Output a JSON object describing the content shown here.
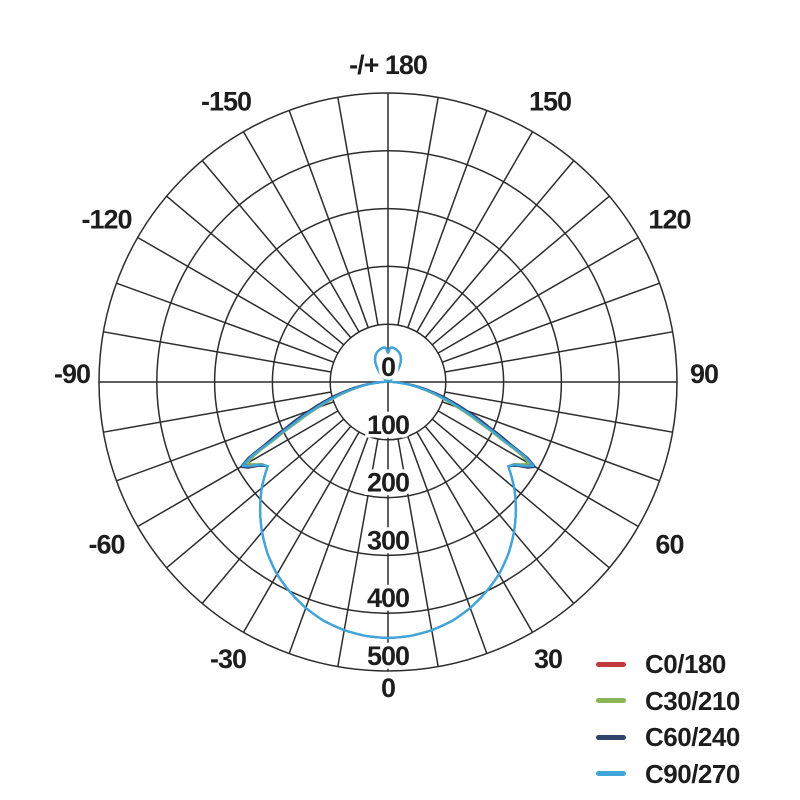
{
  "chart_data": {
    "type": "line",
    "coordinate_system": "polar",
    "title": "",
    "zero_angle_position": "bottom",
    "angle_unit": "deg",
    "grid": {
      "angle_step_deg": 10,
      "radial_step": 100,
      "color": "#2c2c2c"
    },
    "angle_ticks": [
      {
        "angle": 180,
        "label": "-/+ 180"
      },
      {
        "angle": 150,
        "label": "150"
      },
      {
        "angle": 120,
        "label": "120"
      },
      {
        "angle": 90,
        "label": "90"
      },
      {
        "angle": 60,
        "label": "60"
      },
      {
        "angle": 30,
        "label": "30"
      },
      {
        "angle": 0,
        "label": "0"
      },
      {
        "angle": -30,
        "label": "-30"
      },
      {
        "angle": -60,
        "label": "-60"
      },
      {
        "angle": -90,
        "label": "-90"
      },
      {
        "angle": -120,
        "label": "-120"
      },
      {
        "angle": -150,
        "label": "-150"
      }
    ],
    "radial_ticks": [
      "0",
      "100",
      "200",
      "300",
      "400",
      "500"
    ],
    "radial_max": 500,
    "symmetric_mirror": true,
    "series": [
      {
        "name": "C0/180",
        "color": "#c03a3c",
        "samples": [
          [
            0,
            443
          ],
          [
            5,
            441
          ],
          [
            10,
            436
          ],
          [
            15,
            428
          ],
          [
            20,
            416
          ],
          [
            25,
            401
          ],
          [
            30,
            384
          ],
          [
            35,
            363
          ],
          [
            40,
            339
          ],
          [
            45,
            313
          ],
          [
            50,
            285
          ],
          [
            55,
            254
          ],
          [
            57,
            261
          ],
          [
            58.5,
            275
          ],
          [
            60,
            286
          ],
          [
            61.5,
            262
          ],
          [
            63,
            224
          ],
          [
            66,
            176
          ],
          [
            70,
            129
          ],
          [
            74,
            94
          ],
          [
            78,
            64
          ],
          [
            82,
            40
          ],
          [
            86,
            18
          ],
          [
            90,
            6
          ],
          [
            100,
            3
          ],
          [
            110,
            2
          ],
          [
            120,
            2
          ],
          [
            130,
            2
          ],
          [
            136,
            14
          ],
          [
            142,
            30
          ],
          [
            148,
            42
          ],
          [
            154,
            50
          ],
          [
            160,
            55
          ],
          [
            166,
            58
          ],
          [
            171,
            60
          ],
          [
            175,
            60
          ],
          [
            177,
            58
          ],
          [
            178.5,
            53
          ],
          [
            180,
            51
          ]
        ]
      },
      {
        "name": "C30/210",
        "color": "#8ab556",
        "samples": [
          [
            0,
            443
          ],
          [
            5,
            441
          ],
          [
            10,
            436
          ],
          [
            15,
            428
          ],
          [
            20,
            416
          ],
          [
            25,
            401
          ],
          [
            30,
            384
          ],
          [
            35,
            363
          ],
          [
            40,
            339
          ],
          [
            45,
            313
          ],
          [
            50,
            285
          ],
          [
            55,
            254
          ],
          [
            57,
            260
          ],
          [
            58.5,
            272
          ],
          [
            60,
            282
          ],
          [
            61.5,
            258
          ],
          [
            63,
            220
          ],
          [
            66,
            172
          ],
          [
            70,
            126
          ],
          [
            74,
            91
          ],
          [
            78,
            62
          ],
          [
            82,
            38
          ],
          [
            86,
            17
          ],
          [
            90,
            6
          ],
          [
            100,
            3
          ],
          [
            110,
            2
          ],
          [
            120,
            2
          ],
          [
            130,
            2
          ],
          [
            136,
            14
          ],
          [
            142,
            30
          ],
          [
            148,
            42
          ],
          [
            154,
            50
          ],
          [
            160,
            55
          ],
          [
            166,
            58
          ],
          [
            171,
            60
          ],
          [
            175,
            60
          ],
          [
            177,
            58
          ],
          [
            178.5,
            53
          ],
          [
            180,
            51
          ]
        ]
      },
      {
        "name": "C60/240",
        "color": "#2f436b",
        "samples": [
          [
            0,
            443
          ],
          [
            5,
            441
          ],
          [
            10,
            436
          ],
          [
            15,
            428
          ],
          [
            20,
            416
          ],
          [
            25,
            401
          ],
          [
            30,
            384
          ],
          [
            35,
            363
          ],
          [
            40,
            339
          ],
          [
            45,
            313
          ],
          [
            50,
            285
          ],
          [
            55,
            254
          ],
          [
            57,
            266
          ],
          [
            58.5,
            284
          ],
          [
            60,
            294
          ],
          [
            61.5,
            275
          ],
          [
            63,
            240
          ],
          [
            66,
            192
          ],
          [
            70,
            145
          ],
          [
            74,
            108
          ],
          [
            78,
            76
          ],
          [
            82,
            49
          ],
          [
            86,
            24
          ],
          [
            90,
            8
          ],
          [
            100,
            3
          ],
          [
            110,
            2
          ],
          [
            120,
            2
          ],
          [
            130,
            2
          ],
          [
            136,
            14
          ],
          [
            142,
            30
          ],
          [
            148,
            42
          ],
          [
            154,
            50
          ],
          [
            160,
            55
          ],
          [
            166,
            58
          ],
          [
            171,
            60
          ],
          [
            175,
            60
          ],
          [
            177,
            58
          ],
          [
            178.5,
            53
          ],
          [
            180,
            51
          ]
        ]
      },
      {
        "name": "C90/270",
        "color": "#3fa5da",
        "samples": [
          [
            0,
            443
          ],
          [
            5,
            441
          ],
          [
            10,
            436
          ],
          [
            15,
            428
          ],
          [
            20,
            416
          ],
          [
            25,
            401
          ],
          [
            30,
            384
          ],
          [
            35,
            363
          ],
          [
            40,
            339
          ],
          [
            45,
            313
          ],
          [
            50,
            285
          ],
          [
            55,
            254
          ],
          [
            57,
            262
          ],
          [
            58.5,
            278
          ],
          [
            60,
            290
          ],
          [
            61.5,
            268
          ],
          [
            63,
            228
          ],
          [
            66,
            180
          ],
          [
            70,
            133
          ],
          [
            74,
            97
          ],
          [
            78,
            67
          ],
          [
            82,
            42
          ],
          [
            86,
            20
          ],
          [
            90,
            7
          ],
          [
            100,
            3
          ],
          [
            110,
            2
          ],
          [
            120,
            2
          ],
          [
            130,
            2
          ],
          [
            136,
            14
          ],
          [
            142,
            30
          ],
          [
            148,
            42
          ],
          [
            154,
            50
          ],
          [
            160,
            55
          ],
          [
            166,
            58
          ],
          [
            171,
            60
          ],
          [
            175,
            60
          ],
          [
            177,
            58
          ],
          [
            178.5,
            53
          ],
          [
            180,
            51
          ]
        ]
      }
    ]
  }
}
